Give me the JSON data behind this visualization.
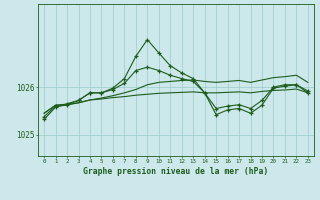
{
  "bg_color": "#cce8ea",
  "grid_color": "#99cccc",
  "line_color": "#1e5c1e",
  "xlabel": "Graphe pression niveau de la mer (hPa)",
  "ylabel_ticks": [
    1025,
    1026
  ],
  "xlim": [
    -0.5,
    23.5
  ],
  "ylim": [
    1024.55,
    1027.75
  ],
  "hours": [
    0,
    1,
    2,
    3,
    4,
    5,
    6,
    7,
    8,
    9,
    10,
    11,
    12,
    13,
    14,
    15,
    16,
    17,
    18,
    19,
    20,
    21,
    22,
    23
  ],
  "series1": [
    1025.45,
    1025.62,
    1025.63,
    1025.67,
    1025.73,
    1025.75,
    1025.78,
    1025.8,
    1025.83,
    1025.85,
    1025.87,
    1025.88,
    1025.89,
    1025.9,
    1025.88,
    1025.88,
    1025.89,
    1025.9,
    1025.88,
    1025.91,
    1025.93,
    1025.94,
    1025.96,
    1025.88
  ],
  "series2": [
    1025.45,
    1025.62,
    1025.63,
    1025.67,
    1025.73,
    1025.77,
    1025.82,
    1025.88,
    1025.95,
    1026.05,
    1026.1,
    1026.12,
    1026.14,
    1026.15,
    1026.12,
    1026.1,
    1026.12,
    1026.14,
    1026.1,
    1026.15,
    1026.2,
    1026.22,
    1026.25,
    1026.1
  ],
  "series3": [
    1025.38,
    1025.6,
    1025.65,
    1025.72,
    1025.88,
    1025.88,
    1025.95,
    1026.08,
    1026.35,
    1026.42,
    1026.35,
    1026.25,
    1026.18,
    1026.12,
    1025.88,
    1025.55,
    1025.6,
    1025.63,
    1025.55,
    1025.72,
    1026.0,
    1026.05,
    1026.05,
    1025.92
  ],
  "series4": [
    1025.32,
    1025.58,
    1025.63,
    1025.72,
    1025.88,
    1025.88,
    1025.98,
    1026.18,
    1026.65,
    1027.0,
    1026.72,
    1026.45,
    1026.3,
    1026.18,
    1025.88,
    1025.42,
    1025.52,
    1025.55,
    1025.45,
    1025.62,
    1025.98,
    1026.02,
    1026.05,
    1025.88
  ]
}
